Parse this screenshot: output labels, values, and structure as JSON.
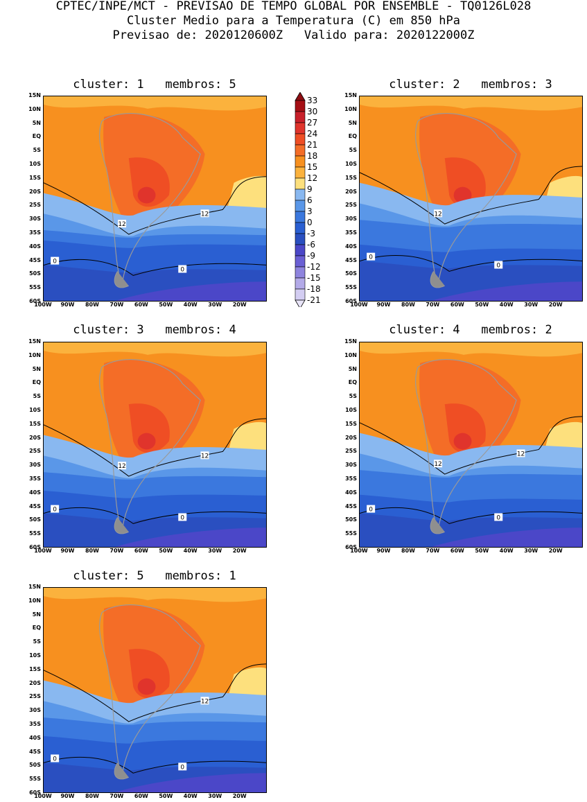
{
  "header": {
    "line1": "CPTEC/INPE/MCT - PREVISAO DE TEMPO GLOBAL POR ENSEMBLE - TQ0126L028",
    "line2": "Cluster Medio para a Temperatura (C) em 850 hPa",
    "line3": "Previsao de: 2020120600Z   Valido para: 2020122000Z"
  },
  "lat_ticks": [
    "15N",
    "10N",
    "5N",
    "EQ",
    "5S",
    "10S",
    "15S",
    "20S",
    "25S",
    "30S",
    "35S",
    "40S",
    "45S",
    "50S",
    "55S",
    "60S"
  ],
  "lon_ticks": [
    "100W",
    "90W",
    "80W",
    "70W",
    "60W",
    "50W",
    "40W",
    "30W",
    "20W"
  ],
  "colorbar": {
    "labels": [
      "33",
      "30",
      "27",
      "24",
      "21",
      "18",
      "15",
      "12",
      "9",
      "6",
      "3",
      "0",
      "-3",
      "-6",
      "-9",
      "-12",
      "-15",
      "-18",
      "-21"
    ],
    "colors": [
      "#a50f15",
      "#c8202a",
      "#e0342c",
      "#ef4e24",
      "#f46d27",
      "#f7901f",
      "#fbb23d",
      "#fde07d",
      "#89b8f0",
      "#5a97e8",
      "#3b78de",
      "#2a5fd2",
      "#2a4fc0",
      "#4b47c8",
      "#6a5fd4",
      "#8e84de",
      "#b3aae8",
      "#d3cdf2"
    ]
  },
  "panels": [
    {
      "title": "cluster: 1   membros: 5",
      "label12a": "12",
      "label12b": "12",
      "label0a": "0",
      "label0b": "0"
    },
    {
      "title": "cluster: 2   membros: 3",
      "label12a": "12",
      "label12b": "",
      "label0a": "0",
      "label0b": "0"
    },
    {
      "title": "cluster: 3   membros: 4",
      "label12a": "12",
      "label12b": "12",
      "label0a": "0",
      "label0b": "0"
    },
    {
      "title": "cluster: 4   membros: 2",
      "label12a": "12",
      "label12b": "12",
      "label0a": "0",
      "label0b": "0"
    },
    {
      "title": "cluster: 5   membros: 1",
      "label12a": "",
      "label12b": "12",
      "label0a": "0",
      "label0b": "0"
    }
  ]
}
